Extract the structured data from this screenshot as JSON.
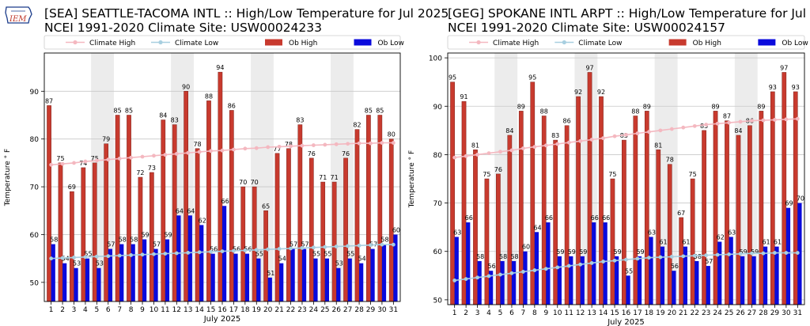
{
  "logo": {
    "text": "IEM"
  },
  "charts": [
    {
      "station_title": "[SEA] SEATTLE-TACOMA INTL :: High/Low Temperature for Jul 2025",
      "climate_title": "NCEI 1991-2020 Climate Site: USW00024233",
      "legend": {
        "climate_high": "Climate High",
        "climate_low": "Climate Low",
        "ob_high": "Ob High",
        "ob_low": "Ob Low"
      },
      "xlabel": "July 2025",
      "ylabel": "Temperature ° F",
      "yticks": [
        50,
        60,
        70,
        80,
        90
      ],
      "ylim": [
        46,
        98
      ],
      "shaded_days": [
        [
          4.5,
          6.5
        ],
        [
          11.5,
          13.5
        ],
        [
          18.5,
          20.5
        ],
        [
          25.5,
          27.5
        ]
      ]
    },
    {
      "station_title": "[GEG] SPOKANE INTL ARPT :: High/Low Temperature for Jul 2025",
      "climate_title": "NCEI 1991-2020 Climate Site: USW00024157",
      "legend": {
        "climate_high": "Climate High",
        "climate_low": "Climate Low",
        "ob_high": "Ob High",
        "ob_low": "Ob Low"
      },
      "xlabel": "July 2025",
      "ylabel": "Temperature ° F",
      "yticks": [
        50,
        60,
        70,
        80,
        90,
        100
      ],
      "ylim": [
        49,
        101
      ],
      "shaded_days": [
        [
          4.5,
          6.5
        ],
        [
          11.5,
          13.5
        ],
        [
          18.5,
          20.5
        ],
        [
          25.5,
          27.5
        ]
      ]
    }
  ],
  "chart_data": [
    {
      "type": "bar",
      "title": "[SEA] SEATTLE-TACOMA INTL :: High/Low Temperature for Jul 2025",
      "subtitle": "NCEI 1991-2020 Climate Site: USW00024233",
      "xlabel": "July 2025",
      "ylabel": "Temperature ° F",
      "ylim": [
        46,
        98
      ],
      "categories": [
        1,
        2,
        3,
        4,
        5,
        6,
        7,
        8,
        9,
        10,
        11,
        12,
        13,
        14,
        15,
        16,
        17,
        18,
        19,
        20,
        21,
        22,
        23,
        24,
        25,
        26,
        27,
        28,
        29,
        30,
        31
      ],
      "series": [
        {
          "name": "Ob High",
          "type": "bar",
          "color": "#c83a2e",
          "values": [
            87,
            75,
            69,
            74,
            75,
            79,
            85,
            85,
            72,
            73,
            84,
            83,
            90,
            78,
            88,
            94,
            86,
            70,
            70,
            65,
            77,
            78,
            83,
            76,
            71,
            71,
            76,
            82,
            85,
            85,
            80
          ]
        },
        {
          "name": "Ob Low",
          "type": "bar",
          "color": "#0a0adc",
          "values": [
            58,
            54,
            53,
            55,
            53,
            57,
            58,
            58,
            59,
            57,
            59,
            64,
            64,
            62,
            56,
            66,
            56,
            56,
            55,
            51,
            54,
            57,
            57,
            55,
            55,
            53,
            55,
            54,
            57,
            58,
            60
          ]
        },
        {
          "name": "Climate High",
          "type": "line",
          "color": "#f4b8c0",
          "values": [
            74.6,
            74.8,
            75.0,
            75.3,
            75.5,
            75.7,
            75.9,
            76.1,
            76.3,
            76.5,
            76.7,
            76.9,
            77.1,
            77.3,
            77.5,
            77.6,
            77.8,
            78.0,
            78.1,
            78.3,
            78.4,
            78.5,
            78.6,
            78.7,
            78.8,
            78.9,
            79.0,
            79.1,
            79.1,
            79.2,
            79.2
          ]
        },
        {
          "name": "Climate Low",
          "type": "line",
          "color": "#a8cfe0",
          "values": [
            55.0,
            55.1,
            55.2,
            55.3,
            55.4,
            55.5,
            55.6,
            55.7,
            55.8,
            55.9,
            56.0,
            56.1,
            56.2,
            56.3,
            56.4,
            56.5,
            56.6,
            56.7,
            56.8,
            56.9,
            57.0,
            57.1,
            57.2,
            57.3,
            57.4,
            57.5,
            57.6,
            57.7,
            57.8,
            57.9,
            57.9
          ]
        }
      ]
    },
    {
      "type": "bar",
      "title": "[GEG] SPOKANE INTL ARPT :: High/Low Temperature for Jul 2025",
      "subtitle": "NCEI 1991-2020 Climate Site: USW00024157",
      "xlabel": "July 2025",
      "ylabel": "Temperature ° F",
      "ylim": [
        49,
        101
      ],
      "categories": [
        1,
        2,
        3,
        4,
        5,
        6,
        7,
        8,
        9,
        10,
        11,
        12,
        13,
        14,
        15,
        16,
        17,
        18,
        19,
        20,
        21,
        22,
        23,
        24,
        25,
        26,
        27,
        28,
        29,
        30,
        31
      ],
      "series": [
        {
          "name": "Ob High",
          "type": "bar",
          "color": "#c83a2e",
          "values": [
            95,
            91,
            81,
            75,
            76,
            84,
            89,
            95,
            88,
            83,
            86,
            92,
            97,
            92,
            75,
            83,
            88,
            89,
            81,
            78,
            67,
            75,
            85,
            89,
            87,
            84,
            86,
            89,
            93,
            97,
            93
          ]
        },
        {
          "name": "Ob Low",
          "type": "bar",
          "color": "#0a0adc",
          "values": [
            63,
            66,
            58,
            56,
            58,
            58,
            60,
            64,
            66,
            59,
            59,
            59,
            66,
            66,
            59,
            55,
            59,
            63,
            61,
            56,
            61,
            58,
            57,
            62,
            63,
            59,
            59,
            61,
            61,
            69,
            70
          ]
        },
        {
          "name": "Climate High",
          "type": "line",
          "color": "#f4b8c0",
          "values": [
            79.4,
            79.7,
            80.0,
            80.3,
            80.6,
            80.9,
            81.3,
            81.6,
            81.9,
            82.2,
            82.5,
            82.8,
            83.1,
            83.4,
            83.8,
            84.1,
            84.4,
            84.7,
            85.0,
            85.3,
            85.6,
            85.9,
            86.2,
            86.4,
            86.6,
            86.8,
            87.0,
            87.1,
            87.2,
            87.3,
            87.4
          ]
        },
        {
          "name": "Climate Low",
          "type": "line",
          "color": "#a8cfe0",
          "values": [
            54.0,
            54.3,
            54.6,
            54.9,
            55.2,
            55.5,
            55.8,
            56.1,
            56.4,
            56.7,
            57.0,
            57.3,
            57.6,
            57.9,
            58.1,
            58.3,
            58.5,
            58.7,
            58.8,
            58.9,
            59.0,
            59.1,
            59.2,
            59.3,
            59.4,
            59.5,
            59.6,
            59.6,
            59.7,
            59.7,
            59.7
          ]
        }
      ]
    }
  ]
}
